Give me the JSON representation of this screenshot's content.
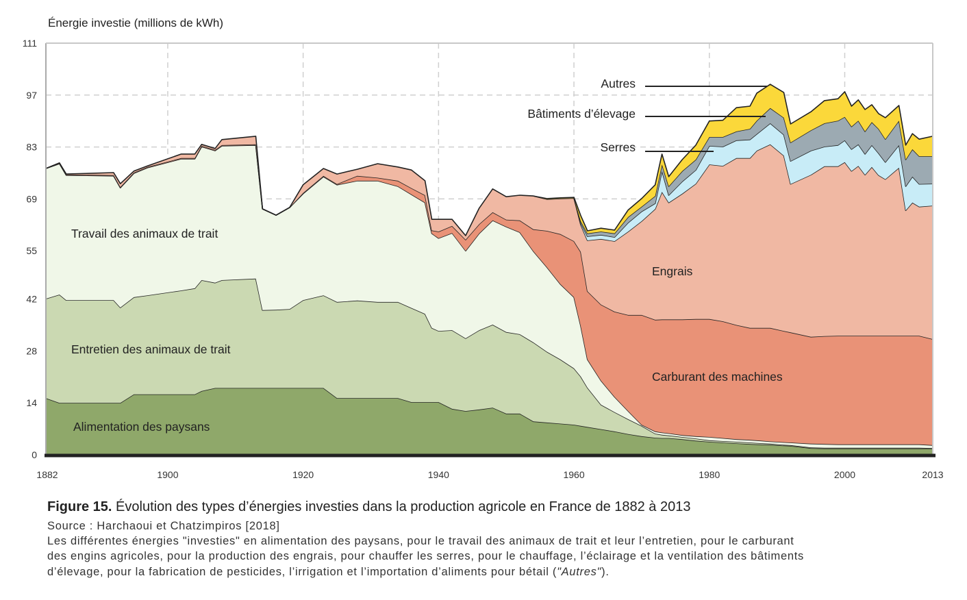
{
  "chart_data": {
    "type": "area",
    "stacked": true,
    "ylabel": "Énergie investie (millions de kWh)",
    "ylim": [
      0,
      111
    ],
    "xlim": [
      1882,
      2013
    ],
    "yticks": [
      0,
      14,
      28,
      42,
      55,
      69,
      83,
      97,
      111
    ],
    "xticks": [
      1882,
      1900,
      1920,
      1940,
      1960,
      1980,
      2000,
      2013
    ],
    "grid": "dashed",
    "x": [
      1882,
      1884,
      1885,
      1892,
      1893,
      1895,
      1897,
      1902,
      1904,
      1905,
      1907,
      1908,
      1913,
      1914,
      1916,
      1918,
      1920,
      1923,
      1925,
      1928,
      1931,
      1934,
      1936,
      1938,
      1939,
      1940,
      1942,
      1944,
      1946,
      1948,
      1950,
      1952,
      1954,
      1956,
      1958,
      1960,
      1961,
      1962,
      1964,
      1966,
      1968,
      1970,
      1972,
      1973,
      1974,
      1976,
      1978,
      1980,
      1982,
      1984,
      1986,
      1987,
      1989,
      1991,
      1992,
      1995,
      1997,
      1999,
      2000,
      2001,
      2002,
      2003,
      2004,
      2005,
      2006,
      2008,
      2009,
      2010,
      2011,
      2013
    ],
    "series": [
      {
        "name": "Alimentation des paysans",
        "color": "#8fa86a",
        "values": [
          15.3,
          14.0,
          14.0,
          14.0,
          14.0,
          16.3,
          16.3,
          16.3,
          16.3,
          17.2,
          18.0,
          18.0,
          18.0,
          18.0,
          18.0,
          18.0,
          18.0,
          18.0,
          15.3,
          15.3,
          15.3,
          15.3,
          14.2,
          14.2,
          14.2,
          14.2,
          12.4,
          11.8,
          12.2,
          12.7,
          11.1,
          11.1,
          9.0,
          8.7,
          8.4,
          8.1,
          7.8,
          7.5,
          6.9,
          6.3,
          5.6,
          5.0,
          4.6,
          4.5,
          4.5,
          4.2,
          3.8,
          3.5,
          3.3,
          3.1,
          2.9,
          2.8,
          2.7,
          2.5,
          2.4,
          1.8,
          1.7,
          1.7,
          1.7,
          1.7,
          1.7,
          1.7,
          1.7,
          1.7,
          1.7,
          1.7,
          1.7,
          1.7,
          1.7,
          1.7
        ]
      },
      {
        "name": "Entretien des animaux de trait",
        "color": "#cbd9b2",
        "values": [
          26.8,
          29.2,
          27.7,
          27.7,
          25.7,
          26.2,
          26.7,
          28.0,
          28.6,
          29.9,
          28.4,
          29.1,
          29.5,
          21.0,
          21.1,
          21.3,
          23.7,
          25.0,
          25.9,
          26.3,
          25.9,
          25.9,
          25.4,
          23.8,
          20.0,
          19.2,
          21.2,
          19.6,
          21.4,
          22.4,
          22.0,
          21.4,
          21.3,
          19.1,
          17.3,
          15.2,
          13.3,
          10.6,
          6.6,
          5.2,
          4.0,
          2.8,
          1.1,
          0.9,
          0.7,
          0.6,
          0.6,
          0.4,
          0.4,
          0.4,
          0.4,
          0.4,
          0.3,
          0.2,
          0.2,
          0.2,
          0.2,
          0.2,
          0.2,
          0.2,
          0.2,
          0.2,
          0.2,
          0.2,
          0.2,
          0.2,
          0.2,
          0.2,
          0.2,
          0.1
        ]
      },
      {
        "name": "Travail des animaux de trait",
        "color": "#f0f7e8",
        "values": [
          35.1,
          35.3,
          33.7,
          33.5,
          32.3,
          33.4,
          34.4,
          35.5,
          34.9,
          36.0,
          35.6,
          36.2,
          36.0,
          27.3,
          25.5,
          27.4,
          28.7,
          32.0,
          31.6,
          32.3,
          32.7,
          31.2,
          30.6,
          30.0,
          25.5,
          25.0,
          26.2,
          23.6,
          26.1,
          28.1,
          28.4,
          27.5,
          24.6,
          22.8,
          20.3,
          19.2,
          13.6,
          7.6,
          6.5,
          4.1,
          2.2,
          0.3,
          0.6,
          0.6,
          0.6,
          0.5,
          0.6,
          0.9,
          0.8,
          0.7,
          0.7,
          0.7,
          0.6,
          0.7,
          0.7,
          1.0,
          1.0,
          0.9,
          0.9,
          0.9,
          0.9,
          0.9,
          0.9,
          0.9,
          0.9,
          0.9,
          0.9,
          0.9,
          0.9,
          0.8
        ]
      },
      {
        "name": "Carburant des machines",
        "color": "#e99277",
        "values": [
          0,
          0.2,
          0.2,
          0.2,
          0.2,
          0.2,
          0.2,
          0.2,
          0.2,
          0.2,
          0.2,
          0.2,
          0.2,
          0,
          0,
          0,
          0.2,
          0.2,
          0.2,
          1.3,
          0.8,
          1.5,
          1.7,
          2.0,
          0.8,
          1.8,
          1.9,
          3.0,
          2.5,
          2.2,
          1.9,
          3.2,
          5.9,
          9.8,
          13.5,
          15.1,
          20.0,
          18.4,
          20.5,
          23.0,
          25.9,
          29.6,
          30.1,
          30.5,
          30.7,
          31.2,
          31.6,
          31.8,
          31.5,
          30.8,
          30.2,
          30.3,
          30.6,
          30.0,
          29.7,
          28.8,
          29.1,
          29.3,
          29.3,
          29.3,
          29.3,
          29.3,
          29.3,
          29.3,
          29.3,
          29.3,
          29.3,
          29.3,
          29.3,
          28.6
        ]
      },
      {
        "name": "Engrais",
        "color": "#f0b8a3",
        "values": [
          0,
          0,
          0.1,
          0.7,
          0.9,
          0.4,
          0.3,
          1.1,
          1.1,
          0.4,
          0.4,
          1.5,
          2.2,
          0,
          0,
          0,
          2.2,
          2.0,
          2.7,
          1.8,
          3.8,
          3.7,
          4.9,
          3.9,
          3.0,
          3.3,
          1.8,
          1.1,
          4.3,
          6.3,
          6.2,
          6.8,
          9.0,
          8.5,
          9.6,
          11.6,
          7.3,
          13.7,
          17.7,
          19.0,
          22.5,
          25.3,
          29.9,
          34.4,
          31.5,
          33.9,
          36.5,
          41.7,
          41.9,
          45.0,
          45.8,
          47.8,
          49.5,
          47.3,
          40.0,
          43.7,
          45.8,
          45.7,
          46.8,
          44.4,
          45.8,
          43.4,
          45.5,
          43.3,
          42.2,
          45.3,
          33.8,
          35.9,
          34.8,
          36.0
        ]
      },
      {
        "name": "Serres",
        "color": "#c8ecf7",
        "values": [
          0,
          0,
          0,
          0,
          0,
          0,
          0,
          0,
          0,
          0,
          0,
          0,
          0,
          0,
          0,
          0,
          0,
          0,
          0,
          0,
          0,
          0,
          0,
          0,
          0,
          0,
          0,
          0,
          0,
          0,
          0,
          0,
          0,
          0,
          0,
          0,
          0.5,
          1.1,
          1.1,
          1.1,
          2.4,
          2.6,
          1.5,
          5.6,
          2.0,
          3.3,
          3.7,
          5.0,
          5.2,
          4.8,
          5.0,
          4.5,
          5.7,
          5.6,
          6.2,
          6.5,
          5.3,
          5.7,
          5.9,
          5.9,
          5.8,
          5.6,
          5.9,
          5.9,
          4.6,
          6.1,
          6.5,
          7.0,
          6.1,
          5.9
        ]
      },
      {
        "name": "Bâtiments d’élevage",
        "color": "#9caab2",
        "values": [
          0,
          0,
          0,
          0,
          0,
          0,
          0,
          0,
          0,
          0,
          0,
          0,
          0,
          0,
          0,
          0,
          0,
          0,
          0,
          0,
          0,
          0,
          0,
          0,
          0,
          0,
          0,
          0,
          0,
          0,
          0,
          0,
          0,
          0,
          0,
          0,
          0.5,
          0.8,
          0.9,
          1.0,
          1.5,
          1.3,
          2.0,
          1.8,
          2.4,
          2.8,
          2.8,
          2.4,
          2.6,
          2.4,
          2.9,
          3.6,
          4.1,
          4.6,
          5.0,
          5.5,
          6.3,
          6.6,
          6.3,
          6.1,
          6.4,
          6.1,
          6.2,
          6.6,
          6.2,
          6.6,
          7.2,
          7.4,
          7.5,
          7.4
        ]
      },
      {
        "name": "Autres",
        "color": "#fbd83a",
        "values": [
          0,
          0,
          0,
          0,
          0,
          0,
          0,
          0,
          0,
          0,
          0,
          0,
          0,
          0,
          0,
          0,
          0,
          0,
          0,
          0,
          0,
          0,
          0,
          0,
          0,
          0,
          0,
          0,
          0,
          0,
          0,
          0,
          0,
          0.2,
          0.2,
          0.2,
          1.5,
          0.7,
          0.9,
          0.9,
          1.9,
          2.2,
          3.0,
          2.8,
          2.6,
          3.1,
          3.9,
          4.3,
          4.5,
          6.4,
          6.1,
          7.4,
          6.4,
          6.8,
          5.0,
          5.0,
          6.1,
          5.9,
          6.8,
          5.5,
          5.6,
          5.9,
          4.7,
          4.1,
          5.8,
          4.1,
          3.9,
          4.2,
          4.6,
          5.4
        ]
      }
    ],
    "labels": {
      "alimentation": "Alimentation des paysans",
      "entretien": "Entretien des animaux de trait",
      "travail": "Travail des animaux de trait",
      "carburant": "Carburant des machines",
      "engrais": "Engrais",
      "serres": "Serres",
      "batiments": "Bâtiments d’élevage",
      "autres": "Autres"
    }
  },
  "caption": {
    "figure_number": "Figure 15.",
    "title": "Évolution des types d’énergies investies dans la production agricole en France de 1882 à 2013",
    "source": "Source : Harchaoui et Chatzimpiros [2018]",
    "line1": "Les différentes énergies \"investies\" en alimentation des paysans, pour le travail des animaux de trait et leur l’entretien, pour le carburant",
    "line2": "des engins agricoles, pour la production des engrais, pour chauffer les serres, pour le chauffage, l’éclairage et la ventilation des bâtiments",
    "line3_start": "d’élevage, pour la fabrication de pesticides, l’irrigation et l’importation d’aliments pour bétail (",
    "line3_italic": "\"Autres\"",
    "line3_end": ")."
  }
}
